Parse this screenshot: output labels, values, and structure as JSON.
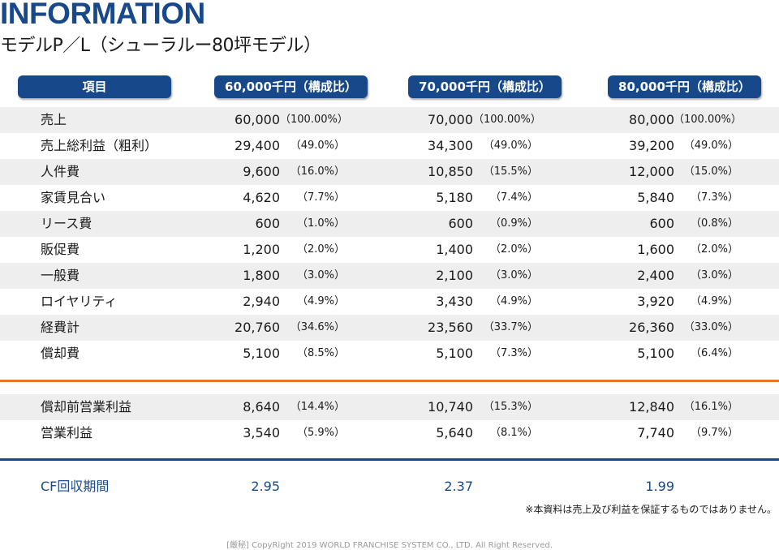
{
  "header": {
    "title": "INFORMATION",
    "subtitle": "モデルP／L（シューラルー80坪モデル）"
  },
  "columns": [
    "項目",
    "60,000千円（構成比）",
    "70,000千円（構成比）",
    "80,000千円（構成比）"
  ],
  "rows": [
    {
      "label": "売上",
      "c1": {
        "v": "60,000",
        "p": "（100.00%）"
      },
      "c2": {
        "v": "70,000",
        "p": "（100.00%）"
      },
      "c3": {
        "v": "80,000",
        "p": "（100.00%）"
      }
    },
    {
      "label": "売上総利益（粗利）",
      "c1": {
        "v": "29,400",
        "p": "（49.0%）"
      },
      "c2": {
        "v": "34,300",
        "p": "（49.0%）"
      },
      "c3": {
        "v": "39,200",
        "p": "（49.0%）"
      }
    },
    {
      "label": "人件費",
      "c1": {
        "v": "9,600",
        "p": "（16.0%）"
      },
      "c2": {
        "v": "10,850",
        "p": "（15.5%）"
      },
      "c3": {
        "v": "12,000",
        "p": "（15.0%）"
      }
    },
    {
      "label": "家賃見合い",
      "c1": {
        "v": "4,620",
        "p": "（7.7%）"
      },
      "c2": {
        "v": "5,180",
        "p": "（7.4%）"
      },
      "c3": {
        "v": "5,840",
        "p": "（7.3%）"
      }
    },
    {
      "label": "リース費",
      "c1": {
        "v": "600",
        "p": "（1.0%）"
      },
      "c2": {
        "v": "600",
        "p": "（0.9%）"
      },
      "c3": {
        "v": "600",
        "p": "（0.8%）"
      }
    },
    {
      "label": "販促費",
      "c1": {
        "v": "1,200",
        "p": "（2.0%）"
      },
      "c2": {
        "v": "1,400",
        "p": "（2.0%）"
      },
      "c3": {
        "v": "1,600",
        "p": "（2.0%）"
      }
    },
    {
      "label": "一般費",
      "c1": {
        "v": "1,800",
        "p": "（3.0%）"
      },
      "c2": {
        "v": "2,100",
        "p": "（3.0%）"
      },
      "c3": {
        "v": "2,400",
        "p": "（3.0%）"
      }
    },
    {
      "label": "ロイヤリティ",
      "c1": {
        "v": "2,940",
        "p": "（4.9%）"
      },
      "c2": {
        "v": "3,430",
        "p": "（4.9%）"
      },
      "c3": {
        "v": "3,920",
        "p": "（4.9%）"
      }
    },
    {
      "label": "経費計",
      "c1": {
        "v": "20,760",
        "p": "（34.6%）"
      },
      "c2": {
        "v": "23,560",
        "p": "（33.7%）"
      },
      "c3": {
        "v": "26,360",
        "p": "（33.0%）"
      }
    },
    {
      "label": "償却費",
      "c1": {
        "v": "5,100",
        "p": "（8.5%）"
      },
      "c2": {
        "v": "5,100",
        "p": "（7.3%）"
      },
      "c3": {
        "v": "5,100",
        "p": "（6.4%）"
      }
    },
    {
      "label": "償却前営業利益",
      "c1": {
        "v": "8,640",
        "p": "（14.4%）"
      },
      "c2": {
        "v": "10,740",
        "p": "（15.3%）"
      },
      "c3": {
        "v": "12,840",
        "p": "（16.1%）"
      }
    },
    {
      "label": "営業利益",
      "c1": {
        "v": "3,540",
        "p": "（5.9%）"
      },
      "c2": {
        "v": "5,640",
        "p": "（8.1%）"
      },
      "c3": {
        "v": "7,740",
        "p": "（9.7%）"
      }
    }
  ],
  "cf": {
    "label": "CF回収期間",
    "c1": "2.95",
    "c2": "2.37",
    "c3": "1.99"
  },
  "note": "※本資料は売上及び利益を保証するものではありません。",
  "footer": "[厳秘] CopyRight 2019 WORLD FRANCHISE SYSTEM CO., LTD. All Right Reserved.",
  "colors": {
    "navy": "#17498a",
    "orange": "#e8752a",
    "row_shade": "#eeeeee"
  }
}
